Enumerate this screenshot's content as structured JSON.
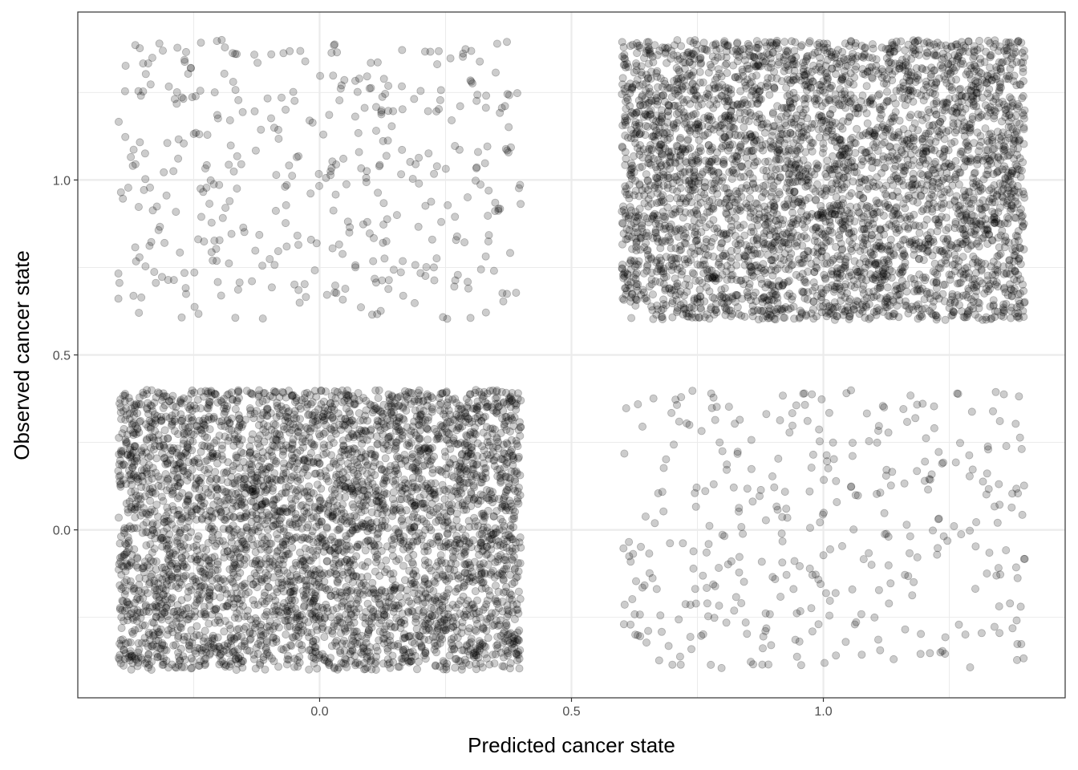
{
  "chart_data": {
    "type": "scatter",
    "title": "",
    "xlabel": "Predicted cancer state",
    "ylabel": "Observed cancer state",
    "xlim": [
      -0.48,
      1.48
    ],
    "ylim": [
      -0.48,
      1.48
    ],
    "x_ticks": [
      0.0,
      0.5,
      1.0
    ],
    "x_tick_labels": [
      "0.0",
      "0.5",
      "1.0"
    ],
    "y_ticks": [
      0.0,
      0.5,
      1.0
    ],
    "y_tick_labels": [
      "0.0",
      "0.5",
      "1.0"
    ],
    "grid": true,
    "point_color": "#000000",
    "point_alpha": 0.2,
    "jitter": 0.4,
    "clusters": [
      {
        "predicted": 0,
        "observed": 0,
        "count": 4200
      },
      {
        "predicted": 0,
        "observed": 1,
        "count": 400
      },
      {
        "predicted": 1,
        "observed": 0,
        "count": 360
      },
      {
        "predicted": 1,
        "observed": 1,
        "count": 4000
      }
    ]
  }
}
